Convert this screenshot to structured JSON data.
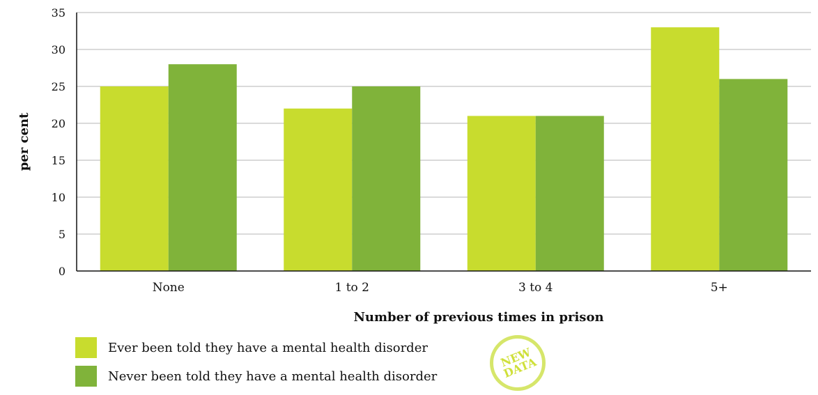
{
  "chart_data": {
    "type": "bar",
    "categories": [
      "None",
      "1 to 2",
      "3 to 4",
      "5+"
    ],
    "series": [
      {
        "name": "Ever been told they have a mental health disorder",
        "values": [
          25,
          22,
          21,
          33
        ],
        "color": "#c8dc2e"
      },
      {
        "name": "Never been told they have a mental health disorder",
        "values": [
          28,
          25,
          21,
          26
        ],
        "color": "#80b33a"
      }
    ],
    "title": "",
    "xlabel": "Number of previous times in prison",
    "ylabel": "per cent",
    "ylim": [
      0,
      35
    ],
    "yticks": [
      0,
      5,
      10,
      15,
      20,
      25,
      30,
      35
    ],
    "grid": true,
    "legend_position": "bottom-left"
  },
  "badge": {
    "text": "NEW\nDATA",
    "color": "#d6e66a"
  }
}
